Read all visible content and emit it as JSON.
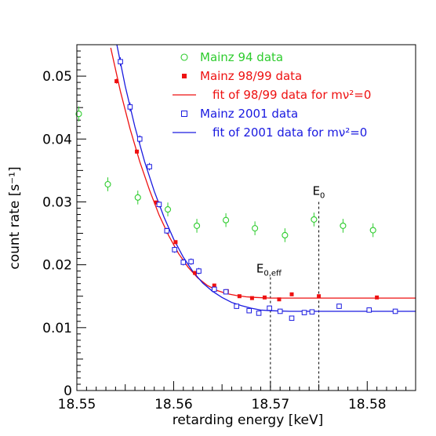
{
  "chart_data": {
    "type": "scatter",
    "xlabel": "retarding energy  [keV]",
    "ylabel": "count rate  [s⁻¹]",
    "xlim": [
      18.55,
      18.585
    ],
    "ylim": [
      0,
      0.055
    ],
    "x_ticks": [
      "18.55",
      "18.56",
      "18.57",
      "18.58"
    ],
    "y_ticks": [
      "0",
      "0.01",
      "0.02",
      "0.03",
      "0.04",
      "0.05"
    ],
    "x_tick_values": [
      18.55,
      18.56,
      18.57,
      18.58
    ],
    "y_tick_values": [
      0,
      0.01,
      0.02,
      0.03,
      0.04,
      0.05
    ],
    "legend_position": "top-right",
    "legend": [
      "Mainz 94 data",
      "Mainz 98/99 data",
      "fit of 98/99 data for mν²=0",
      "Mainz 2001 data",
      "fit of 2001 data for mν²=0"
    ],
    "annotations": [
      {
        "text": "E₀",
        "x": 18.575
      },
      {
        "text": "E₀,eff",
        "x": 18.57
      }
    ],
    "series": [
      {
        "name": "Mainz 94 data",
        "kind": "points",
        "marker": "open-circle",
        "color": "#2ecc2e",
        "points": [
          [
            18.5502,
            0.044,
            0.0012
          ],
          [
            18.5532,
            0.0328,
            0.0011
          ],
          [
            18.5563,
            0.0307,
            0.0011
          ],
          [
            18.5594,
            0.0288,
            0.0011
          ],
          [
            18.5624,
            0.0262,
            0.0011
          ],
          [
            18.5654,
            0.0271,
            0.0011
          ],
          [
            18.5684,
            0.0258,
            0.0011
          ],
          [
            18.5715,
            0.0247,
            0.0011
          ],
          [
            18.5745,
            0.0272,
            0.0011
          ],
          [
            18.5775,
            0.0262,
            0.0011
          ],
          [
            18.5806,
            0.0255,
            0.0011
          ]
        ]
      },
      {
        "name": "Mainz 98/99 data",
        "kind": "points",
        "marker": "filled-square",
        "color": "#ee1111",
        "points": [
          [
            18.5541,
            0.0492,
            0.0004
          ],
          [
            18.5562,
            0.038,
            0.0003
          ],
          [
            18.5582,
            0.0299,
            0.0003
          ],
          [
            18.5602,
            0.0236,
            0.0003
          ],
          [
            18.5622,
            0.0187,
            0.0003
          ],
          [
            18.5642,
            0.0167,
            0.0002
          ],
          [
            18.5655,
            0.0158,
            0.0002
          ],
          [
            18.5668,
            0.015,
            0.0002
          ],
          [
            18.5681,
            0.0147,
            0.0002
          ],
          [
            18.5694,
            0.0148,
            0.0002
          ],
          [
            18.5709,
            0.0145,
            0.0002
          ],
          [
            18.5722,
            0.0153,
            0.0002
          ],
          [
            18.575,
            0.015,
            0.0002
          ],
          [
            18.581,
            0.0148,
            0.0002
          ]
        ]
      },
      {
        "name": "fit of 98/99 data for mν²=0",
        "kind": "line",
        "color": "#ee1111",
        "x": [
          18.5535,
          18.5545,
          18.5555,
          18.5565,
          18.5575,
          18.5585,
          18.5595,
          18.5605,
          18.5615,
          18.5625,
          18.5635,
          18.5645,
          18.5655,
          18.5665,
          18.5675,
          18.5685,
          18.57,
          18.572,
          18.575,
          18.58,
          18.585
        ],
        "y": [
          0.0545,
          0.0476,
          0.0416,
          0.0364,
          0.0319,
          0.0279,
          0.0246,
          0.0218,
          0.0196,
          0.0179,
          0.0167,
          0.0159,
          0.0154,
          0.0151,
          0.0149,
          0.0148,
          0.0147,
          0.0147,
          0.0147,
          0.0147,
          0.0147
        ]
      },
      {
        "name": "Mainz 2001 data",
        "kind": "points",
        "marker": "open-square",
        "color": "#1a1ae0",
        "points": [
          [
            18.5545,
            0.0523,
            0.0007
          ],
          [
            18.5555,
            0.0451,
            0.0007
          ],
          [
            18.5565,
            0.04,
            0.0006
          ],
          [
            18.5575,
            0.0356,
            0.0006
          ],
          [
            18.5585,
            0.0296,
            0.0005
          ],
          [
            18.5593,
            0.0254,
            0.0005
          ],
          [
            18.5601,
            0.0224,
            0.0005
          ],
          [
            18.561,
            0.0204,
            0.0005
          ],
          [
            18.5618,
            0.0205,
            0.0005
          ],
          [
            18.5626,
            0.019,
            0.0005
          ],
          [
            18.5642,
            0.0161,
            0.0004
          ],
          [
            18.5654,
            0.0157,
            0.0004
          ],
          [
            18.5665,
            0.0134,
            0.0004
          ],
          [
            18.5678,
            0.0127,
            0.0004
          ],
          [
            18.5688,
            0.0123,
            0.0004
          ],
          [
            18.5699,
            0.0131,
            0.0004
          ],
          [
            18.571,
            0.0126,
            0.0004
          ],
          [
            18.5722,
            0.0115,
            0.0004
          ],
          [
            18.5735,
            0.0124,
            0.0004
          ],
          [
            18.5743,
            0.0125,
            0.0004
          ],
          [
            18.5771,
            0.0134,
            0.0004
          ],
          [
            18.5802,
            0.0128,
            0.0004
          ],
          [
            18.5829,
            0.0126,
            0.0004
          ]
        ]
      },
      {
        "name": "fit of 2001 data for mν²=0",
        "kind": "line",
        "color": "#1a1ae0",
        "x": [
          18.553,
          18.554,
          18.555,
          18.556,
          18.557,
          18.558,
          18.559,
          18.56,
          18.561,
          18.562,
          18.563,
          18.564,
          18.565,
          18.566,
          18.567,
          18.568,
          18.569,
          18.57,
          18.572,
          18.575,
          18.58,
          18.585
        ],
        "y": [
          0.062,
          0.056,
          0.0484,
          0.0419,
          0.0364,
          0.0317,
          0.0276,
          0.0241,
          0.0212,
          0.0189,
          0.0171,
          0.0158,
          0.0148,
          0.014,
          0.0135,
          0.0131,
          0.0128,
          0.0127,
          0.0126,
          0.0126,
          0.0126,
          0.0126
        ]
      }
    ]
  }
}
